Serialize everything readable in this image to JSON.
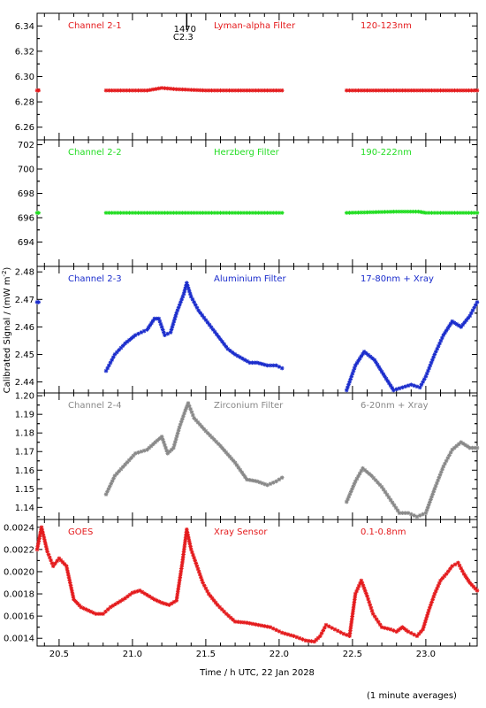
{
  "chart_data": {
    "type": "scatter",
    "xlabel": "Time / h UTC, 22 Jan 2028",
    "ylabel": "Calibrated Signal / (mW m",
    "ylabel_sup": "-2",
    "ylabel_close": ")",
    "footnote": "(1 minute averages)",
    "xlim": [
      20.35,
      23.35
    ],
    "xticks": [
      20.5,
      21.0,
      21.5,
      22.0,
      22.5,
      23.0
    ],
    "xtick_labels": [
      "20.5",
      "21.0",
      "21.5",
      "22.0",
      "22.5",
      "23.0"
    ],
    "marker": {
      "x": 21.37,
      "label1": "1470",
      "label2": "C2.3"
    },
    "panels": [
      {
        "channel": "Channel 2-1",
        "filter": "Lyman-alpha Filter",
        "band": "120-123nm",
        "color": "#e41a1c",
        "ylim": [
          6.25,
          6.35
        ],
        "yticks": [
          6.26,
          6.28,
          6.3,
          6.32,
          6.34
        ],
        "ytick_labels": [
          "6.26",
          "6.28",
          "6.30",
          "6.32",
          "6.34"
        ],
        "segments": [
          {
            "x": [
              20.35,
              20.36
            ],
            "y": [
              6.289,
              6.289
            ]
          },
          {
            "x": [
              20.82,
              21.0,
              21.1,
              21.2,
              21.3,
              21.5,
              21.8,
              22.02
            ],
            "y": [
              6.289,
              6.289,
              6.289,
              6.291,
              6.29,
              6.289,
              6.289,
              6.289
            ]
          },
          {
            "x": [
              22.46,
              22.8,
              23.1,
              23.35
            ],
            "y": [
              6.289,
              6.289,
              6.289,
              6.289
            ]
          }
        ]
      },
      {
        "channel": "Channel 2-2",
        "filter": "Herzberg Filter",
        "band": "190-222nm",
        "color": "#22dd22",
        "ylim": [
          692.0,
          702.4
        ],
        "yticks": [
          694,
          696,
          698,
          700,
          702
        ],
        "ytick_labels": [
          "694",
          "696",
          "698",
          "700",
          "702"
        ],
        "segments": [
          {
            "x": [
              20.35,
              20.36
            ],
            "y": [
              696.4,
              696.4
            ]
          },
          {
            "x": [
              20.82,
              21.2,
              21.5,
              22.02
            ],
            "y": [
              696.4,
              696.4,
              696.4,
              696.4
            ]
          },
          {
            "x": [
              22.46,
              22.8,
              22.95,
              23.0,
              23.1,
              23.35
            ],
            "y": [
              696.4,
              696.5,
              696.5,
              696.4,
              696.4,
              696.4
            ]
          }
        ]
      },
      {
        "channel": "Channel 2-3",
        "filter": "Aluminium Filter",
        "band": "17-80nm + Xray",
        "color": "#1a2ccc",
        "ylim": [
          2.436,
          2.482
        ],
        "yticks": [
          2.44,
          2.45,
          2.46,
          2.47,
          2.48
        ],
        "ytick_labels": [
          "2.44",
          "2.45",
          "2.46",
          "2.47",
          "2.48"
        ],
        "segments": [
          {
            "x": [
              20.35,
              20.36
            ],
            "y": [
              2.469,
              2.469
            ]
          },
          {
            "x": [
              20.82,
              20.88,
              20.95,
              21.02,
              21.1,
              21.15,
              21.18,
              21.22,
              21.26,
              21.3,
              21.35,
              21.37,
              21.4,
              21.45,
              21.55,
              21.65,
              21.7,
              21.8,
              21.85,
              21.92,
              21.98,
              22.02
            ],
            "y": [
              2.444,
              2.45,
              2.454,
              2.457,
              2.459,
              2.463,
              2.463,
              2.457,
              2.458,
              2.465,
              2.472,
              2.476,
              2.471,
              2.466,
              2.459,
              2.452,
              2.45,
              2.447,
              2.447,
              2.446,
              2.446,
              2.445
            ]
          },
          {
            "x": [
              22.46,
              22.52,
              22.58,
              22.65,
              22.72,
              22.78,
              22.84,
              22.9,
              22.96,
              23.0,
              23.06,
              23.12,
              23.18,
              23.24,
              23.3,
              23.35
            ],
            "y": [
              2.437,
              2.446,
              2.451,
              2.448,
              2.442,
              2.437,
              2.438,
              2.439,
              2.438,
              2.442,
              2.45,
              2.457,
              2.462,
              2.46,
              2.464,
              2.469
            ]
          }
        ]
      },
      {
        "channel": "Channel 2-4",
        "filter": "Zirconium Filter",
        "band": "6-20nm + Xray",
        "color": "#888888",
        "ylim": [
          1.1335,
          1.2015
        ],
        "yticks": [
          1.14,
          1.15,
          1.16,
          1.17,
          1.18,
          1.19,
          1.2
        ],
        "ytick_labels": [
          "1.14",
          "1.15",
          "1.16",
          "1.17",
          "1.18",
          "1.19",
          "1.20"
        ],
        "segments": [
          {
            "x": [
              20.82,
              20.88,
              20.95,
              21.02,
              21.1,
              21.17,
              21.2,
              21.24,
              21.28,
              21.32,
              21.36,
              21.38,
              21.42,
              21.5,
              21.6,
              21.7,
              21.78,
              21.85,
              21.92,
              21.98,
              22.02
            ],
            "y": [
              1.147,
              1.157,
              1.163,
              1.169,
              1.171,
              1.176,
              1.178,
              1.169,
              1.172,
              1.183,
              1.192,
              1.196,
              1.188,
              1.181,
              1.173,
              1.164,
              1.155,
              1.154,
              1.152,
              1.154,
              1.156
            ]
          },
          {
            "x": [
              22.46,
              22.52,
              22.57,
              22.63,
              22.7,
              22.76,
              22.82,
              22.88,
              22.94,
              23.0,
              23.06,
              23.12,
              23.18,
              23.24,
              23.3,
              23.35
            ],
            "y": [
              1.143,
              1.154,
              1.161,
              1.157,
              1.151,
              1.144,
              1.137,
              1.137,
              1.135,
              1.137,
              1.15,
              1.162,
              1.171,
              1.175,
              1.172,
              1.172
            ]
          }
        ]
      },
      {
        "channel": "GOES",
        "filter": "Xray Sensor",
        "band": "0.1-0.8nm",
        "color": "#e41a1c",
        "ylim": [
          0.00133,
          0.00247
        ],
        "yticks": [
          0.0014,
          0.0016,
          0.0018,
          0.002,
          0.0022,
          0.0024
        ],
        "ytick_labels": [
          "0.0014",
          "0.0016",
          "0.0018",
          "0.0020",
          "0.0022",
          "0.0024"
        ],
        "segments": [
          {
            "x": [
              20.35,
              20.38,
              20.42,
              20.46,
              20.5,
              20.55,
              20.6,
              20.65,
              20.7,
              20.75,
              20.8,
              20.85,
              20.9,
              20.95,
              21.0,
              21.05,
              21.1,
              21.15,
              21.2,
              21.25,
              21.3,
              21.34,
              21.37,
              21.4,
              21.44,
              21.48,
              21.52,
              21.58,
              21.64,
              21.7,
              21.78,
              21.86,
              21.94,
              22.02,
              22.1,
              22.18,
              22.24,
              22.28,
              22.32,
              22.38,
              22.44,
              22.48,
              22.52,
              22.56,
              22.6,
              22.64,
              22.7,
              22.76,
              22.8,
              22.84,
              22.88,
              22.94,
              22.98,
              23.02,
              23.06,
              23.1,
              23.14,
              23.18,
              23.22,
              23.26,
              23.3,
              23.35
            ],
            "y": [
              0.0022,
              0.0024,
              0.00218,
              0.00205,
              0.00212,
              0.00205,
              0.00175,
              0.00168,
              0.00165,
              0.00162,
              0.00162,
              0.00168,
              0.00172,
              0.00176,
              0.00181,
              0.00183,
              0.00179,
              0.00175,
              0.00172,
              0.0017,
              0.00174,
              0.00208,
              0.00238,
              0.0022,
              0.00205,
              0.0019,
              0.0018,
              0.0017,
              0.00162,
              0.00155,
              0.00154,
              0.00152,
              0.0015,
              0.00145,
              0.00142,
              0.00138,
              0.00137,
              0.00142,
              0.00152,
              0.00148,
              0.00144,
              0.00142,
              0.0018,
              0.00192,
              0.00178,
              0.00162,
              0.0015,
              0.00148,
              0.00146,
              0.0015,
              0.00146,
              0.00142,
              0.00148,
              0.00165,
              0.0018,
              0.00192,
              0.00198,
              0.00205,
              0.00208,
              0.00198,
              0.0019,
              0.00183
            ]
          }
        ]
      }
    ]
  }
}
